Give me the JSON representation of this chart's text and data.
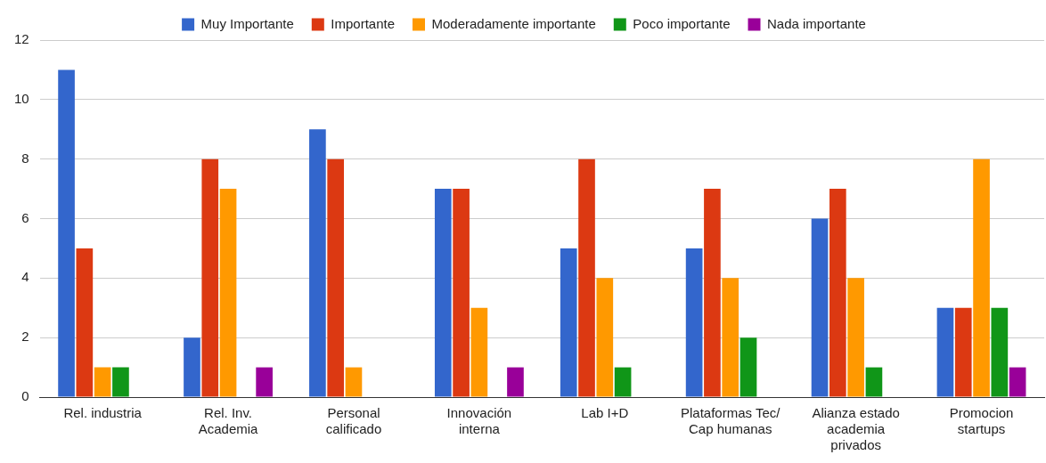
{
  "chart_data": {
    "type": "bar",
    "categories": [
      "Rel. industria",
      "Rel. Inv. Academia",
      "Personal calificado",
      "Innovación interna",
      "Lab I+D",
      "Plataformas Tec/ Cap humanas",
      "Alianza estado academia privados",
      "Promocion startups"
    ],
    "series": [
      {
        "name": "Muy Importante",
        "color": "#3366cc",
        "values": [
          11,
          2,
          9,
          7,
          5,
          5,
          6,
          3
        ]
      },
      {
        "name": "Importante",
        "color": "#dc3912",
        "values": [
          5,
          8,
          8,
          7,
          8,
          7,
          7,
          3
        ]
      },
      {
        "name": "Moderadamente importante",
        "color": "#ff9900",
        "values": [
          1,
          7,
          1,
          3,
          4,
          4,
          4,
          8
        ]
      },
      {
        "name": "Poco importante",
        "color": "#109618",
        "values": [
          1,
          0,
          0,
          0,
          1,
          2,
          1,
          3
        ]
      },
      {
        "name": "Nada importante",
        "color": "#990099",
        "values": [
          0,
          1,
          0,
          1,
          0,
          0,
          0,
          1
        ]
      }
    ],
    "ylim": [
      0,
      12
    ],
    "yticks": [
      0,
      2,
      4,
      6,
      8,
      10,
      12
    ],
    "grid": "y",
    "legend": "top"
  }
}
